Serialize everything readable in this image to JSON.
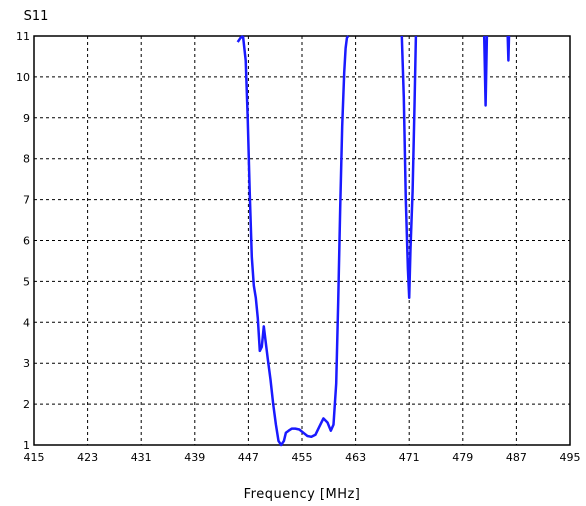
{
  "chart_data": {
    "type": "line",
    "title": "",
    "ylabel": "S11",
    "xlabel": "Frequency [MHz]",
    "xlim": [
      415,
      495
    ],
    "ylim": [
      1,
      11
    ],
    "xticks": [
      415,
      423,
      431,
      439,
      447,
      455,
      463,
      471,
      479,
      487,
      495
    ],
    "yticks": [
      1,
      2,
      3,
      4,
      5,
      6,
      7,
      8,
      9,
      10,
      11
    ],
    "grid": true,
    "grid_style": "dashed",
    "line_color": "#1a1aff",
    "series": [
      {
        "segments": [
          {
            "x": [
              445.4,
              445.8,
              446.2
            ],
            "y": [
              10.85,
              10.95,
              11.0
            ]
          },
          {
            "x": [
              446.2,
              446.6,
              446.9,
              447.2,
              447.5,
              447.8,
              448.1,
              448.4,
              448.7,
              449.0,
              449.3,
              449.6,
              449.9,
              450.3,
              450.7,
              451.1,
              451.5,
              451.9,
              452.3,
              452.6,
              453.0,
              453.5,
              454.0,
              454.6,
              455.2,
              455.8,
              456.4,
              457.0,
              457.6,
              458.2,
              458.8,
              459.3,
              459.7,
              460.1,
              460.4,
              460.7,
              461.0,
              461.3,
              461.5,
              461.7,
              461.9
            ],
            "y": [
              11.0,
              10.4,
              9.0,
              7.2,
              5.6,
              4.9,
              4.6,
              4.1,
              3.3,
              3.4,
              3.9,
              3.5,
              3.1,
              2.6,
              2.0,
              1.5,
              1.1,
              1.0,
              1.1,
              1.3,
              1.35,
              1.4,
              1.4,
              1.38,
              1.3,
              1.22,
              1.2,
              1.25,
              1.45,
              1.65,
              1.55,
              1.35,
              1.5,
              2.5,
              4.5,
              6.8,
              8.8,
              10.1,
              10.7,
              10.95,
              11.0
            ]
          },
          {
            "x": [
              469.9,
              470.2,
              470.5,
              470.8,
              471.0,
              471.2,
              471.5,
              471.8,
              472.0
            ],
            "y": [
              11.0,
              9.5,
              7.0,
              5.3,
              4.6,
              5.8,
              7.2,
              9.4,
              11.0
            ]
          },
          {
            "x": [
              482.2,
              482.4,
              482.6
            ],
            "y": [
              11.0,
              9.3,
              11.0
            ]
          },
          {
            "x": [
              485.7,
              485.8,
              485.9
            ],
            "y": [
              11.0,
              10.4,
              11.0
            ]
          }
        ]
      }
    ]
  }
}
